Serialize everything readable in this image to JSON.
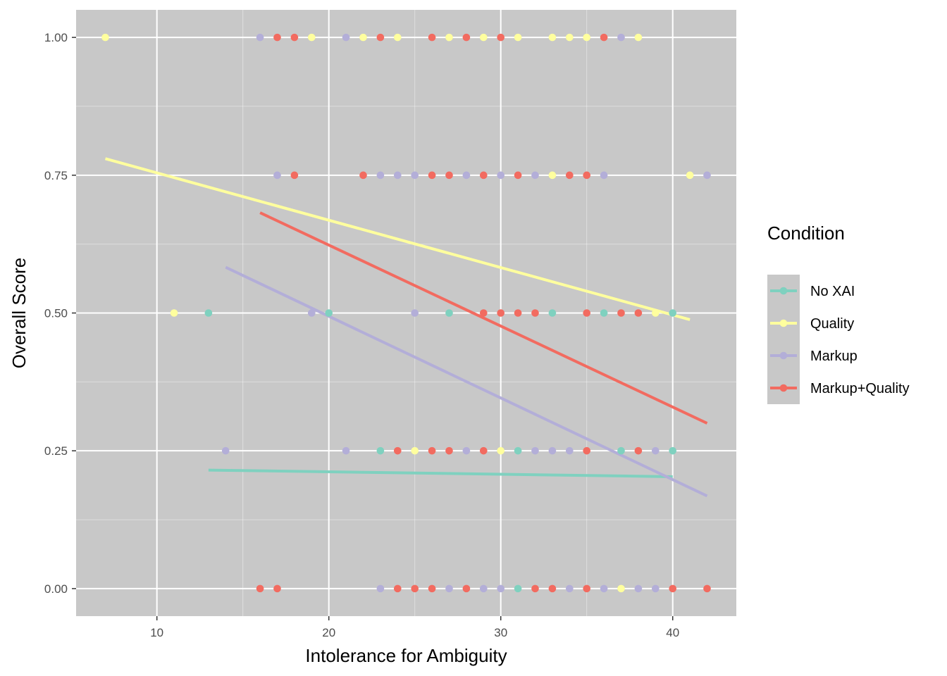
{
  "chart_data": {
    "type": "scatter",
    "xlabel": "Intolerance for Ambiguity",
    "ylabel": "Overall Score",
    "xlim": [
      5.3,
      43.7
    ],
    "ylim": [
      -0.05,
      1.05
    ],
    "x_ticks": [
      10,
      20,
      30,
      40
    ],
    "x_tick_labels": [
      "10",
      "20",
      "30",
      "40"
    ],
    "y_ticks": [
      0,
      0.25,
      0.5,
      0.75,
      1.0
    ],
    "y_tick_labels": [
      "0.00",
      "0.25",
      "0.50",
      "0.75",
      "1.00"
    ],
    "panel_background": "#c8c8c8",
    "grid": true,
    "legend": {
      "title": "Condition",
      "placement": "right",
      "entries": [
        {
          "name": "No XAI",
          "color": "#7fd1bf"
        },
        {
          "name": "Quality",
          "color": "#ffff9e"
        },
        {
          "name": "Markup",
          "color": "#b3aed8"
        },
        {
          "name": "Markup+Quality",
          "color": "#f26b60"
        }
      ]
    },
    "series": [
      {
        "name": "No XAI",
        "color": "#7fd1bf",
        "points": [
          [
            13,
            0.5
          ],
          [
            20,
            0.5
          ],
          [
            27,
            0.5
          ],
          [
            33,
            0.5
          ],
          [
            36,
            0.5
          ],
          [
            40,
            0.5
          ],
          [
            23,
            0.25
          ],
          [
            31,
            0.25
          ],
          [
            37,
            0.25
          ],
          [
            40,
            0.25
          ],
          [
            31,
            0
          ]
        ],
        "trend": [
          [
            13,
            0.215
          ],
          [
            40,
            0.203
          ]
        ]
      },
      {
        "name": "Quality",
        "color": "#ffff9e",
        "points": [
          [
            7,
            1
          ],
          [
            19,
            1
          ],
          [
            22,
            1
          ],
          [
            24,
            1
          ],
          [
            27,
            1
          ],
          [
            29,
            1
          ],
          [
            31,
            1
          ],
          [
            33,
            1
          ],
          [
            34,
            1
          ],
          [
            35,
            1
          ],
          [
            38,
            1
          ],
          [
            33,
            0.75
          ],
          [
            41,
            0.75
          ],
          [
            11,
            0.5
          ],
          [
            39,
            0.5
          ],
          [
            25,
            0.25
          ],
          [
            30,
            0.25
          ],
          [
            37,
            0
          ]
        ],
        "trend": [
          [
            7,
            0.78
          ],
          [
            41,
            0.488
          ]
        ]
      },
      {
        "name": "Markup",
        "color": "#b3aed8",
        "points": [
          [
            16,
            1
          ],
          [
            21,
            1
          ],
          [
            37,
            1
          ],
          [
            17,
            0.75
          ],
          [
            23,
            0.75
          ],
          [
            24,
            0.75
          ],
          [
            25,
            0.75
          ],
          [
            28,
            0.75
          ],
          [
            30,
            0.75
          ],
          [
            32,
            0.75
          ],
          [
            36,
            0.75
          ],
          [
            42,
            0.75
          ],
          [
            19,
            0.5
          ],
          [
            25,
            0.5
          ],
          [
            14,
            0.25
          ],
          [
            21,
            0.25
          ],
          [
            28,
            0.25
          ],
          [
            32,
            0.25
          ],
          [
            33,
            0.25
          ],
          [
            34,
            0.25
          ],
          [
            39,
            0.25
          ],
          [
            23,
            0
          ],
          [
            27,
            0
          ],
          [
            29,
            0
          ],
          [
            30,
            0
          ],
          [
            34,
            0
          ],
          [
            36,
            0
          ],
          [
            38,
            0
          ],
          [
            39,
            0
          ]
        ],
        "trend": [
          [
            14,
            0.583
          ],
          [
            42,
            0.168
          ]
        ]
      },
      {
        "name": "Markup+Quality",
        "color": "#f26b60",
        "points": [
          [
            17,
            1
          ],
          [
            18,
            1
          ],
          [
            23,
            1
          ],
          [
            26,
            1
          ],
          [
            28,
            1
          ],
          [
            30,
            1
          ],
          [
            36,
            1
          ],
          [
            18,
            0.75
          ],
          [
            22,
            0.75
          ],
          [
            26,
            0.75
          ],
          [
            27,
            0.75
          ],
          [
            29,
            0.75
          ],
          [
            31,
            0.75
          ],
          [
            34,
            0.75
          ],
          [
            35,
            0.75
          ],
          [
            29,
            0.5
          ],
          [
            30,
            0.5
          ],
          [
            31,
            0.5
          ],
          [
            32,
            0.5
          ],
          [
            35,
            0.5
          ],
          [
            37,
            0.5
          ],
          [
            38,
            0.5
          ],
          [
            24,
            0.25
          ],
          [
            26,
            0.25
          ],
          [
            27,
            0.25
          ],
          [
            29,
            0.25
          ],
          [
            35,
            0.25
          ],
          [
            38,
            0.25
          ],
          [
            16,
            0
          ],
          [
            17,
            0
          ],
          [
            24,
            0
          ],
          [
            25,
            0
          ],
          [
            26,
            0
          ],
          [
            28,
            0
          ],
          [
            32,
            0
          ],
          [
            33,
            0
          ],
          [
            35,
            0
          ],
          [
            40,
            0
          ],
          [
            42,
            0
          ]
        ],
        "trend": [
          [
            16,
            0.682
          ],
          [
            42,
            0.3
          ]
        ]
      }
    ]
  }
}
